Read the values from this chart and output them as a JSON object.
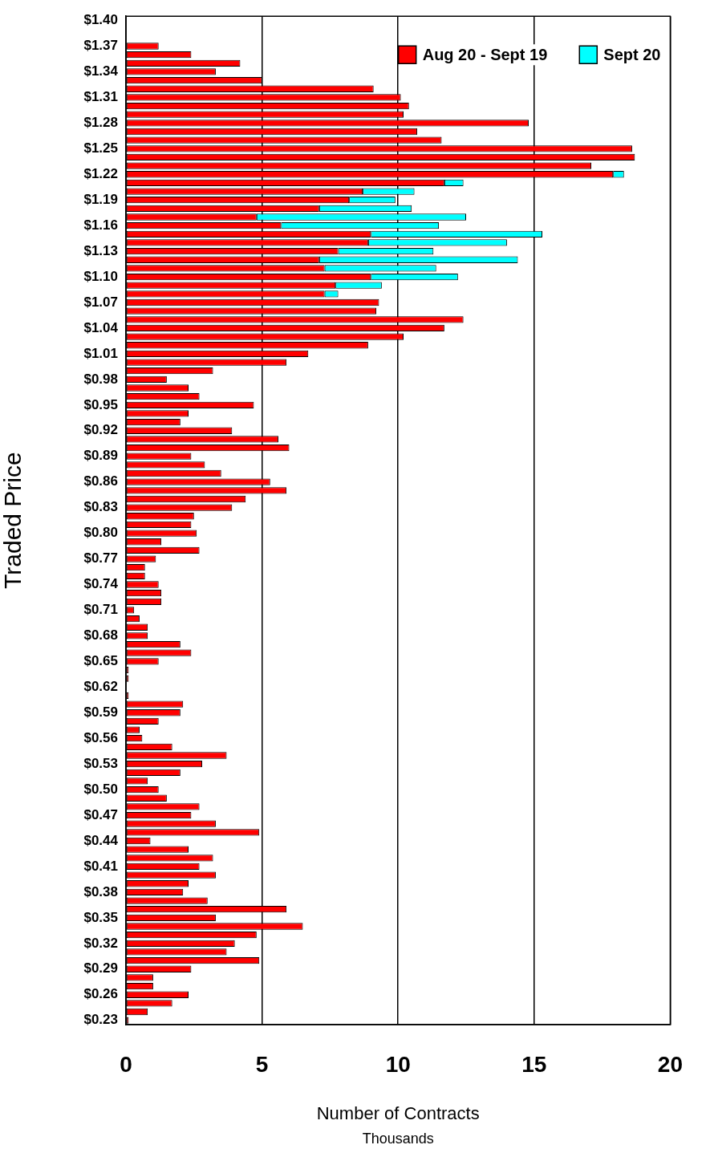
{
  "chart_data": {
    "type": "bar",
    "orientation": "horizontal",
    "stacked": true,
    "ylabel": "Traded Price",
    "xlabel": "Number of Contracts",
    "annotations": [
      "Thousands"
    ],
    "categories": [
      "$1.40",
      null,
      null,
      "$1.37",
      null,
      null,
      "$1.34",
      null,
      null,
      "$1.31",
      null,
      null,
      "$1.28",
      null,
      null,
      "$1.25",
      null,
      null,
      "$1.22",
      null,
      null,
      "$1.19",
      null,
      null,
      "$1.16",
      null,
      null,
      "$1.13",
      null,
      null,
      "$1.10",
      null,
      null,
      "$1.07",
      null,
      null,
      "$1.04",
      null,
      null,
      "$1.01",
      null,
      null,
      "$0.98",
      null,
      null,
      "$0.95",
      null,
      null,
      "$0.92",
      null,
      null,
      "$0.89",
      null,
      null,
      "$0.86",
      null,
      null,
      "$0.83",
      null,
      null,
      "$0.80",
      null,
      null,
      "$0.77",
      null,
      null,
      "$0.74",
      null,
      null,
      "$0.71",
      null,
      null,
      "$0.68",
      null,
      null,
      "$0.65",
      null,
      null,
      "$0.62",
      null,
      null,
      "$0.59",
      null,
      null,
      "$0.56",
      null,
      null,
      "$0.53",
      null,
      null,
      "$0.50",
      null,
      null,
      "$0.47",
      null,
      null,
      "$0.44",
      null,
      null,
      "$0.41",
      null,
      null,
      "$0.38",
      null,
      null,
      "$0.35",
      null,
      null,
      "$0.32",
      null,
      null,
      "$0.29",
      null,
      null,
      "$0.26",
      null,
      null,
      "$0.23"
    ],
    "series": [
      {
        "name": "Aug 20 - Sept 19",
        "color": "#ff0000",
        "values": [
          null,
          null,
          null,
          1.2,
          2.4,
          4.2,
          3.3,
          5.0,
          9.1,
          10.1,
          10.4,
          10.2,
          14.8,
          10.7,
          11.6,
          18.6,
          18.7,
          17.1,
          17.9,
          11.7,
          8.7,
          8.2,
          7.1,
          4.8,
          5.7,
          9.0,
          8.9,
          7.8,
          7.1,
          7.3,
          9.0,
          7.7,
          7.3,
          9.3,
          9.2,
          12.4,
          11.7,
          10.2,
          8.9,
          6.7,
          5.9,
          3.2,
          1.5,
          2.3,
          2.7,
          4.7,
          2.3,
          2.0,
          3.9,
          5.6,
          6.0,
          2.4,
          2.9,
          3.5,
          5.3,
          5.9,
          4.4,
          3.9,
          2.5,
          2.4,
          2.6,
          1.3,
          2.7,
          1.1,
          0.7,
          0.7,
          1.2,
          1.3,
          1.3,
          0.3,
          0.5,
          0.8,
          0.8,
          2.0,
          2.4,
          1.2,
          0.1,
          0.1,
          0,
          0.1,
          2.1,
          2.0,
          1.2,
          0.5,
          0.6,
          1.7,
          3.7,
          2.8,
          2.0,
          0.8,
          1.2,
          1.5,
          2.7,
          2.4,
          3.3,
          4.9,
          0.9,
          2.3,
          3.2,
          2.7,
          3.3,
          2.3,
          2.1,
          3.0,
          5.9,
          3.3,
          6.5,
          4.8,
          4.0,
          3.7,
          4.9,
          2.4,
          1.0,
          1.0,
          2.3,
          1.7,
          0.8,
          0.1
        ]
      },
      {
        "name": "Sept 20",
        "color": "#00ffff",
        "values": [
          null,
          null,
          null,
          null,
          null,
          null,
          null,
          null,
          null,
          null,
          null,
          null,
          null,
          null,
          null,
          null,
          null,
          null,
          0.4,
          0.7,
          1.9,
          1.7,
          3.4,
          7.7,
          5.8,
          6.3,
          5.1,
          3.5,
          7.3,
          4.1,
          3.2,
          1.7,
          0.5,
          null,
          null,
          null,
          null,
          null,
          null,
          null,
          null,
          null,
          null,
          null,
          null,
          null,
          null,
          null,
          null,
          null,
          null,
          null,
          null,
          null,
          null,
          null,
          null,
          null,
          null,
          null,
          null,
          null,
          null,
          null,
          null,
          null,
          null,
          null,
          null,
          null,
          null,
          null,
          null,
          null,
          null,
          null,
          null,
          null,
          null,
          null,
          null,
          null,
          null,
          null,
          null,
          null,
          null,
          null,
          null,
          null,
          null,
          null,
          null,
          null,
          null,
          null,
          null,
          null,
          null,
          null,
          null,
          null,
          null,
          null,
          null,
          null,
          null,
          null,
          null,
          null,
          null,
          null,
          null,
          null,
          null,
          null,
          null,
          null
        ]
      }
    ],
    "xlim": [
      0,
      20
    ],
    "xticks": [
      0,
      5,
      10,
      15,
      20
    ],
    "grid": "x",
    "legend": "top right"
  }
}
